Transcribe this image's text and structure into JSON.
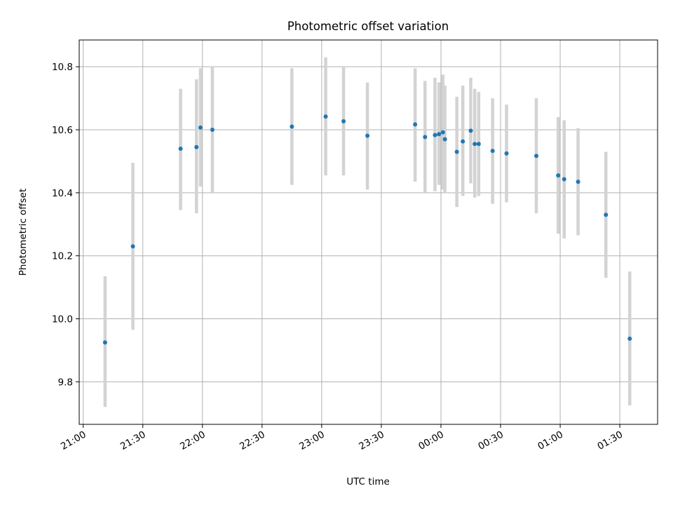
{
  "chart_data": {
    "type": "scatter",
    "title": "Photometric offset variation",
    "xlabel": "UTC time",
    "ylabel": "Photometric offset",
    "x_is_time": true,
    "x_tick_labels": [
      "21:00",
      "21:30",
      "22:00",
      "22:30",
      "23:00",
      "23:30",
      "00:00",
      "00:30",
      "01:00",
      "01:30"
    ],
    "x_ticks": [
      "21:00",
      "21:30",
      "22:00",
      "22:30",
      "23:00",
      "23:30",
      "24:00",
      "24:30",
      "25:00",
      "25:30"
    ],
    "y_ticks": [
      9.8,
      10.0,
      10.2,
      10.4,
      10.6,
      10.8
    ],
    "y_tick_labels": [
      "9.8",
      "10.0",
      "10.2",
      "10.4",
      "10.6",
      "10.8"
    ],
    "xlim": [
      "20:58",
      "25:49"
    ],
    "ylim": [
      9.665,
      10.885
    ],
    "grid": true,
    "error_bar_color": "#d3d3d3",
    "point_color": "#1f77b4",
    "points": [
      {
        "t": "21:11",
        "y": 9.925,
        "lo": 9.72,
        "hi": 10.135
      },
      {
        "t": "21:25",
        "y": 10.23,
        "lo": 9.965,
        "hi": 10.495
      },
      {
        "t": "21:49",
        "y": 10.54,
        "lo": 10.345,
        "hi": 10.73
      },
      {
        "t": "21:57",
        "y": 10.545,
        "lo": 10.335,
        "hi": 10.76
      },
      {
        "t": "21:59",
        "y": 10.607,
        "lo": 10.42,
        "hi": 10.795
      },
      {
        "t": "22:05",
        "y": 10.6,
        "lo": 10.4,
        "hi": 10.8
      },
      {
        "t": "22:45",
        "y": 10.61,
        "lo": 10.425,
        "hi": 10.795
      },
      {
        "t": "23:02",
        "y": 10.642,
        "lo": 10.455,
        "hi": 10.83
      },
      {
        "t": "23:11",
        "y": 10.627,
        "lo": 10.455,
        "hi": 10.8
      },
      {
        "t": "23:23",
        "y": 10.581,
        "lo": 10.41,
        "hi": 10.75
      },
      {
        "t": "23:47",
        "y": 10.617,
        "lo": 10.435,
        "hi": 10.795
      },
      {
        "t": "23:52",
        "y": 10.577,
        "lo": 10.4,
        "hi": 10.755
      },
      {
        "t": "23:57",
        "y": 10.583,
        "lo": 10.405,
        "hi": 10.765
      },
      {
        "t": "23:59",
        "y": 10.586,
        "lo": 10.425,
        "hi": 10.75
      },
      {
        "t": "24:01",
        "y": 10.592,
        "lo": 10.41,
        "hi": 10.775
      },
      {
        "t": "24:02",
        "y": 10.57,
        "lo": 10.4,
        "hi": 10.74
      },
      {
        "t": "24:08",
        "y": 10.53,
        "lo": 10.355,
        "hi": 10.705
      },
      {
        "t": "24:11",
        "y": 10.563,
        "lo": 10.39,
        "hi": 10.74
      },
      {
        "t": "24:15",
        "y": 10.597,
        "lo": 10.43,
        "hi": 10.765
      },
      {
        "t": "24:17",
        "y": 10.555,
        "lo": 10.385,
        "hi": 10.73
      },
      {
        "t": "24:19",
        "y": 10.555,
        "lo": 10.39,
        "hi": 10.72
      },
      {
        "t": "24:26",
        "y": 10.533,
        "lo": 10.365,
        "hi": 10.7
      },
      {
        "t": "24:33",
        "y": 10.525,
        "lo": 10.37,
        "hi": 10.68
      },
      {
        "t": "24:48",
        "y": 10.517,
        "lo": 10.335,
        "hi": 10.7
      },
      {
        "t": "24:59",
        "y": 10.455,
        "lo": 10.27,
        "hi": 10.64
      },
      {
        "t": "25:02",
        "y": 10.443,
        "lo": 10.255,
        "hi": 10.63
      },
      {
        "t": "25:09",
        "y": 10.435,
        "lo": 10.265,
        "hi": 10.605
      },
      {
        "t": "25:23",
        "y": 10.33,
        "lo": 10.13,
        "hi": 10.53
      },
      {
        "t": "25:35",
        "y": 9.937,
        "lo": 9.725,
        "hi": 10.15
      }
    ]
  }
}
